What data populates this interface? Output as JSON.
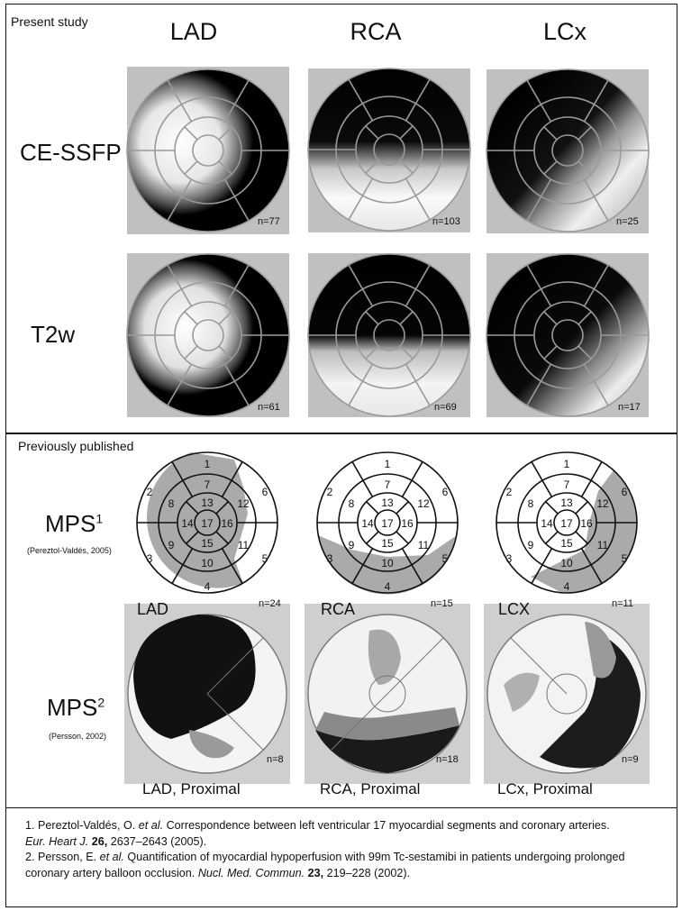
{
  "top": {
    "section_label": "Present study",
    "columns": [
      "LAD",
      "RCA",
      "LCx"
    ],
    "rows": [
      {
        "label": "CE-SSFP",
        "n": [
          "n=77",
          "n=103",
          "n=25"
        ]
      },
      {
        "label": "T2w",
        "n": [
          "n=61",
          "n=69",
          "n=17"
        ]
      }
    ]
  },
  "bottom": {
    "section_label": "Previously published",
    "mps1": {
      "label": "MPS",
      "sup": "1",
      "citation": "(Pereztol-Valdés, 2005)",
      "panels": [
        {
          "label": "LAD",
          "n": "n=24"
        },
        {
          "label": "RCA",
          "n": "n=15"
        },
        {
          "label": "LCX",
          "n": "n=11"
        }
      ],
      "segments": [
        "1",
        "2",
        "3",
        "4",
        "5",
        "6",
        "7",
        "8",
        "9",
        "10",
        "11",
        "12",
        "13",
        "14",
        "15",
        "16",
        "17"
      ]
    },
    "mps2": {
      "label": "MPS",
      "sup": "2",
      "citation": "(Persson, 2002)",
      "panels": [
        {
          "caption": "LAD, Proximal",
          "n": "n=8"
        },
        {
          "caption": "RCA, Proximal",
          "n": "n=18"
        },
        {
          "caption": "LCx, Proximal",
          "n": "n=9"
        }
      ]
    }
  },
  "references": {
    "r1_a": "1. Pereztol-Valdés, O. ",
    "r1_b": "et al.",
    "r1_c": " Correspondence between left ventricular 17 myocardial segments and coronary arteries.",
    "r1_d": "Eur. Heart J.",
    "r1_e": " ",
    "r1_f": "26,",
    "r1_g": " 2637–2643 (2005).",
    "r2_a": "2. Persson, E. ",
    "r2_b": "et al.",
    "r2_c": " Quantification of myocardial hypoperfusion with 99m Tc-sestamibi in patients undergoing prolonged coronary artery balloon occlusion. ",
    "r2_d": "Nucl. Med. Commun.",
    "r2_e": " ",
    "r2_f": "23,",
    "r2_g": " 219–228 (2002)."
  }
}
